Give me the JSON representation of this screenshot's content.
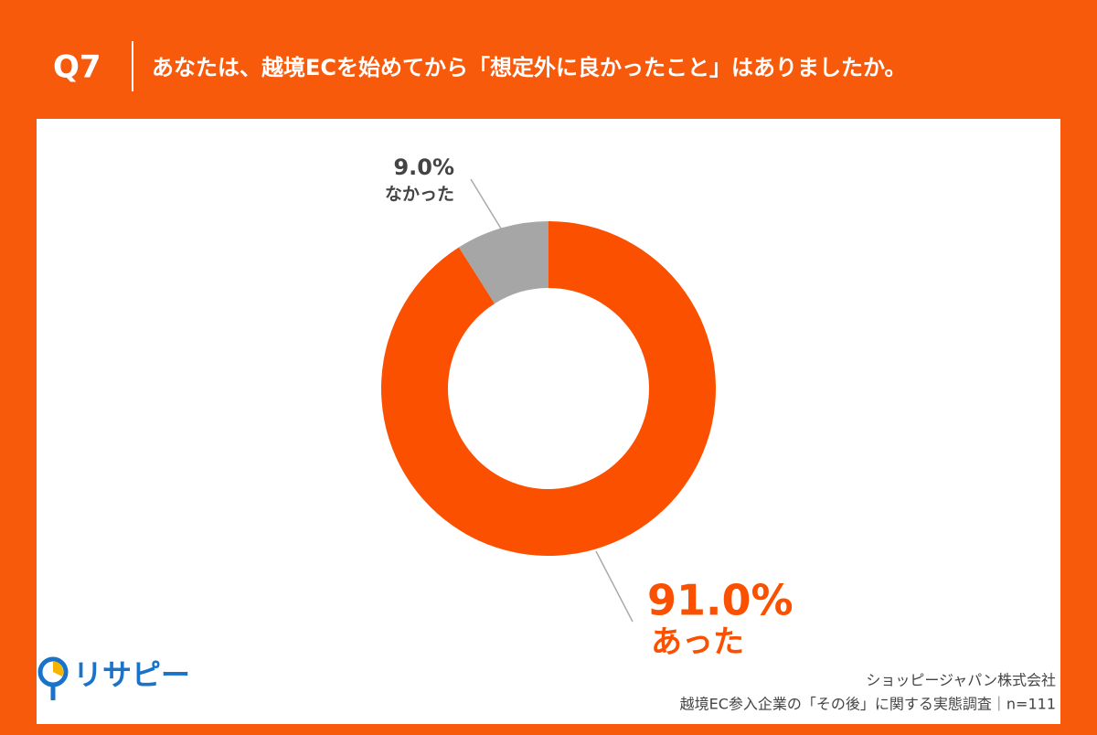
{
  "header": {
    "label": "Q7",
    "title": "あなたは、越境ECを始めてから「想定外に良かったこと」はありましたか。"
  },
  "chart_data": {
    "type": "donut",
    "categories": [
      "あった",
      "なかった"
    ],
    "values": [
      91.0,
      9.0
    ],
    "value_labels": [
      "91.0%",
      "9.0%"
    ],
    "colors": [
      "#fb5000",
      "#a6a6a6"
    ]
  },
  "footer": {
    "logo": "リサピー",
    "source": [
      "ショッピージャパン株式会社",
      "越境EC参入企業の「その後」に関する実態調査｜n=111"
    ]
  }
}
